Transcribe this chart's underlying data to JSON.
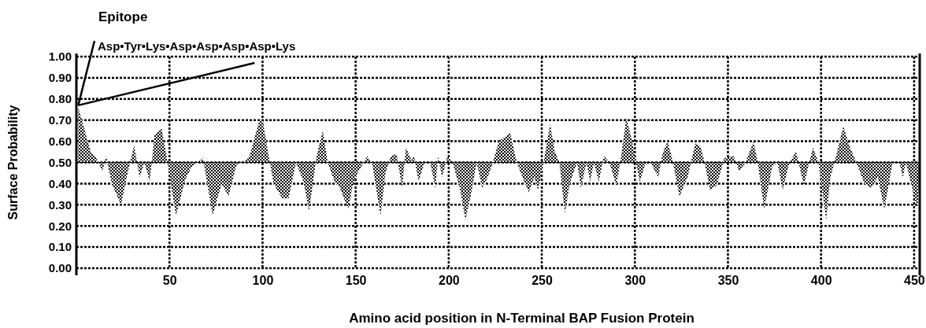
{
  "chart_data": {
    "type": "area",
    "title": "Epitope",
    "xlabel": "Amino acid position in N-Terminal BAP Fusion Protein",
    "ylabel": "Surface Probability",
    "annotations": [
      {
        "text": "Asp•Tyr•Lys•Asp•Asp•Asp•Asp•Lys",
        "x": 1,
        "y": 0.77
      }
    ],
    "xlim": [
      0,
      453
    ],
    "xticks": [
      50,
      100,
      150,
      200,
      250,
      300,
      350,
      400,
      450
    ],
    "ylim": [
      0,
      1
    ],
    "yticks": [
      {
        "value": 0,
        "label": "0.00"
      },
      {
        "value": 0.1,
        "label": "0.10"
      },
      {
        "value": 0.2,
        "label": "0.20"
      },
      {
        "value": 0.3,
        "label": "0.30"
      },
      {
        "value": 0.4,
        "label": "0.40"
      },
      {
        "value": 0.5,
        "label": "0.50"
      },
      {
        "value": 0.6,
        "label": "0.60"
      },
      {
        "value": 0.7,
        "label": "0.70"
      },
      {
        "value": 0.8,
        "label": "0.80"
      },
      {
        "value": 0.9,
        "label": "0.90"
      },
      {
        "value": 1,
        "label": "1.00"
      }
    ],
    "grid": true,
    "ref_lines": [
      {
        "axis": "y",
        "value": 0.5
      }
    ],
    "series": [
      {
        "color": "#000000",
        "x": [
          1,
          7.7,
          10.6,
          14,
          16,
          19,
          24,
          27.5,
          31,
          34,
          36.6,
          39.4,
          42,
          45.8,
          48.6,
          53.5,
          58.5,
          62,
          68,
          73.2,
          78,
          81.7,
          86,
          89.4,
          93,
          98,
          100,
          103.5,
          106,
          110.6,
          114,
          118,
          122,
          125,
          129,
          132.4,
          135,
          138.7,
          141.5,
          146,
          148.6,
          151,
          156.3,
          159,
          163.4,
          166,
          169,
          172,
          175,
          177,
          180,
          181.4,
          183.8,
          187,
          190,
          192.8,
          194.3,
          196.4,
          199.3,
          202,
          205.7,
          209,
          212,
          215,
          218,
          221,
          223.7,
          227,
          230,
          233,
          236,
          238.7,
          243,
          246,
          248,
          251,
          254.5,
          257,
          259.5,
          262.4,
          265,
          269,
          271,
          274,
          276,
          278,
          280.6,
          283.4,
          286.3,
          290,
          292.5,
          295.4,
          298,
          300.4,
          302.6,
          305.5,
          308.4,
          312.6,
          314.8,
          317.6,
          320.5,
          324,
          328.3,
          332.5,
          335.4,
          337.5,
          340.3,
          344,
          348,
          353,
          356,
          359.5,
          363.8,
          366,
          369.5,
          373.7,
          376.6,
          379.4,
          383,
          386.6,
          390.8,
          393.6,
          395.7,
          398.6,
          402.8,
          405,
          407.8,
          412,
          415.6,
          419,
          423.4,
          427,
          430.5,
          434,
          438.4,
          442,
          444,
          445.5,
          449,
          451.8,
          453
        ],
        "values": [
          0.76,
          0.55,
          0.52,
          0.46,
          0.53,
          0.4,
          0.3,
          0.45,
          0.58,
          0.43,
          0.5,
          0.41,
          0.63,
          0.66,
          0.52,
          0.25,
          0.42,
          0.48,
          0.52,
          0.25,
          0.4,
          0.34,
          0.49,
          0.5,
          0.53,
          0.69,
          0.7,
          0.52,
          0.4,
          0.33,
          0.33,
          0.5,
          0.41,
          0.27,
          0.53,
          0.65,
          0.5,
          0.41,
          0.38,
          0.28,
          0.4,
          0.45,
          0.53,
          0.49,
          0.25,
          0.45,
          0.53,
          0.54,
          0.38,
          0.57,
          0.51,
          0.53,
          0.41,
          0.5,
          0.5,
          0.38,
          0.53,
          0.43,
          0.53,
          0.5,
          0.39,
          0.23,
          0.35,
          0.5,
          0.38,
          0.43,
          0.5,
          0.6,
          0.62,
          0.64,
          0.52,
          0.45,
          0.36,
          0.43,
          0.37,
          0.5,
          0.68,
          0.55,
          0.5,
          0.26,
          0.4,
          0.5,
          0.38,
          0.5,
          0.41,
          0.5,
          0.41,
          0.53,
          0.5,
          0.39,
          0.52,
          0.71,
          0.62,
          0.51,
          0.41,
          0.49,
          0.5,
          0.43,
          0.54,
          0.6,
          0.5,
          0.34,
          0.43,
          0.59,
          0.57,
          0.5,
          0.37,
          0.39,
          0.52,
          0.53,
          0.46,
          0.5,
          0.6,
          0.5,
          0.28,
          0.48,
          0.5,
          0.37,
          0.5,
          0.55,
          0.39,
          0.5,
          0.57,
          0.5,
          0.23,
          0.43,
          0.52,
          0.67,
          0.57,
          0.5,
          0.4,
          0.38,
          0.43,
          0.28,
          0.5,
          0.5,
          0.43,
          0.5,
          0.38,
          0.28,
          0.49
        ]
      }
    ]
  }
}
